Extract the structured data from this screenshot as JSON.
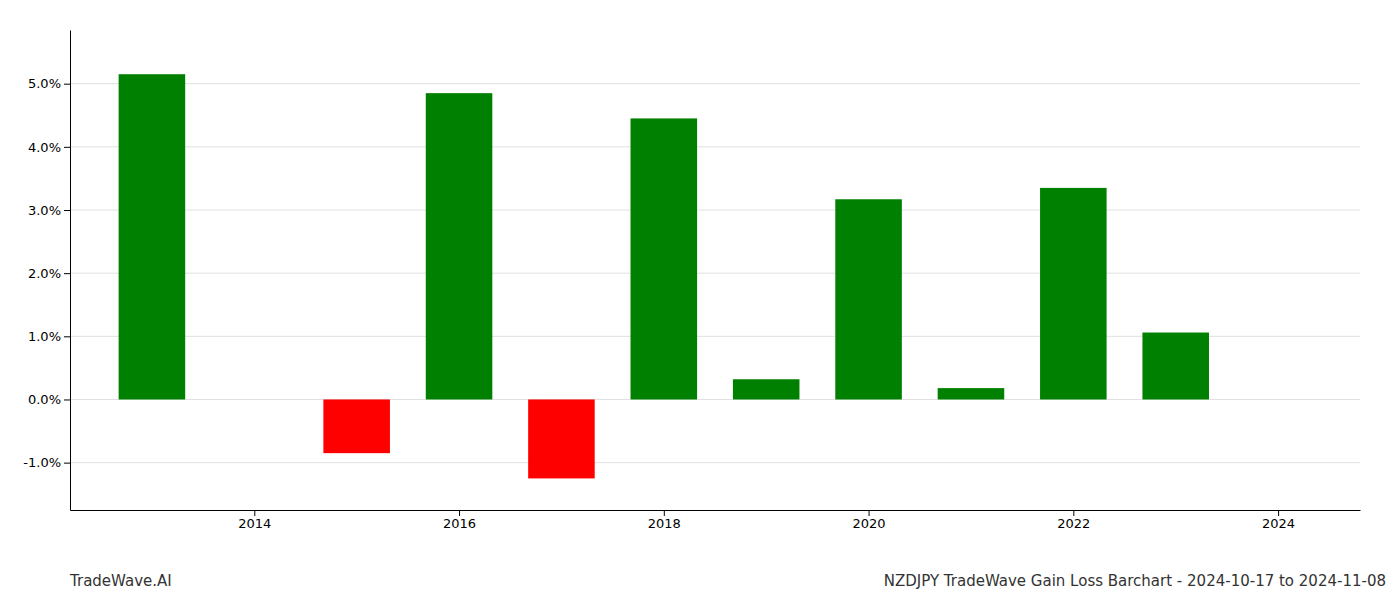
{
  "chart_data": {
    "type": "bar",
    "title": "NZDJPY TradeWave Gain Loss Barchart - 2024-10-17 to 2024-11-08",
    "annotations": [
      "TradeWave.AI"
    ],
    "x": [
      2013,
      2015,
      2016,
      2017,
      2018,
      2019,
      2020,
      2021,
      2022,
      2023
    ],
    "values": [
      5.15,
      -0.85,
      4.85,
      -1.25,
      4.45,
      0.32,
      3.17,
      0.18,
      3.35,
      1.06
    ],
    "colors": [
      "#008000",
      "#ff0000",
      "#008000",
      "#ff0000",
      "#008000",
      "#008000",
      "#008000",
      "#008000",
      "#008000",
      "#008000"
    ],
    "xlim": [
      2012.2,
      2024.8
    ],
    "xticks": [
      2014,
      2016,
      2018,
      2020,
      2022,
      2024
    ],
    "ylim": [
      -1.75,
      5.85
    ],
    "yticks": [
      {
        "value": -1.0,
        "label": "-1.0%"
      },
      {
        "value": 0.0,
        "label": "0.0%"
      },
      {
        "value": 1.0,
        "label": "1.0%"
      },
      {
        "value": 2.0,
        "label": "2.0%"
      },
      {
        "value": 3.0,
        "label": "3.0%"
      },
      {
        "value": 4.0,
        "label": "4.0%"
      },
      {
        "value": 5.0,
        "label": "5.0%"
      }
    ],
    "grid": true
  }
}
